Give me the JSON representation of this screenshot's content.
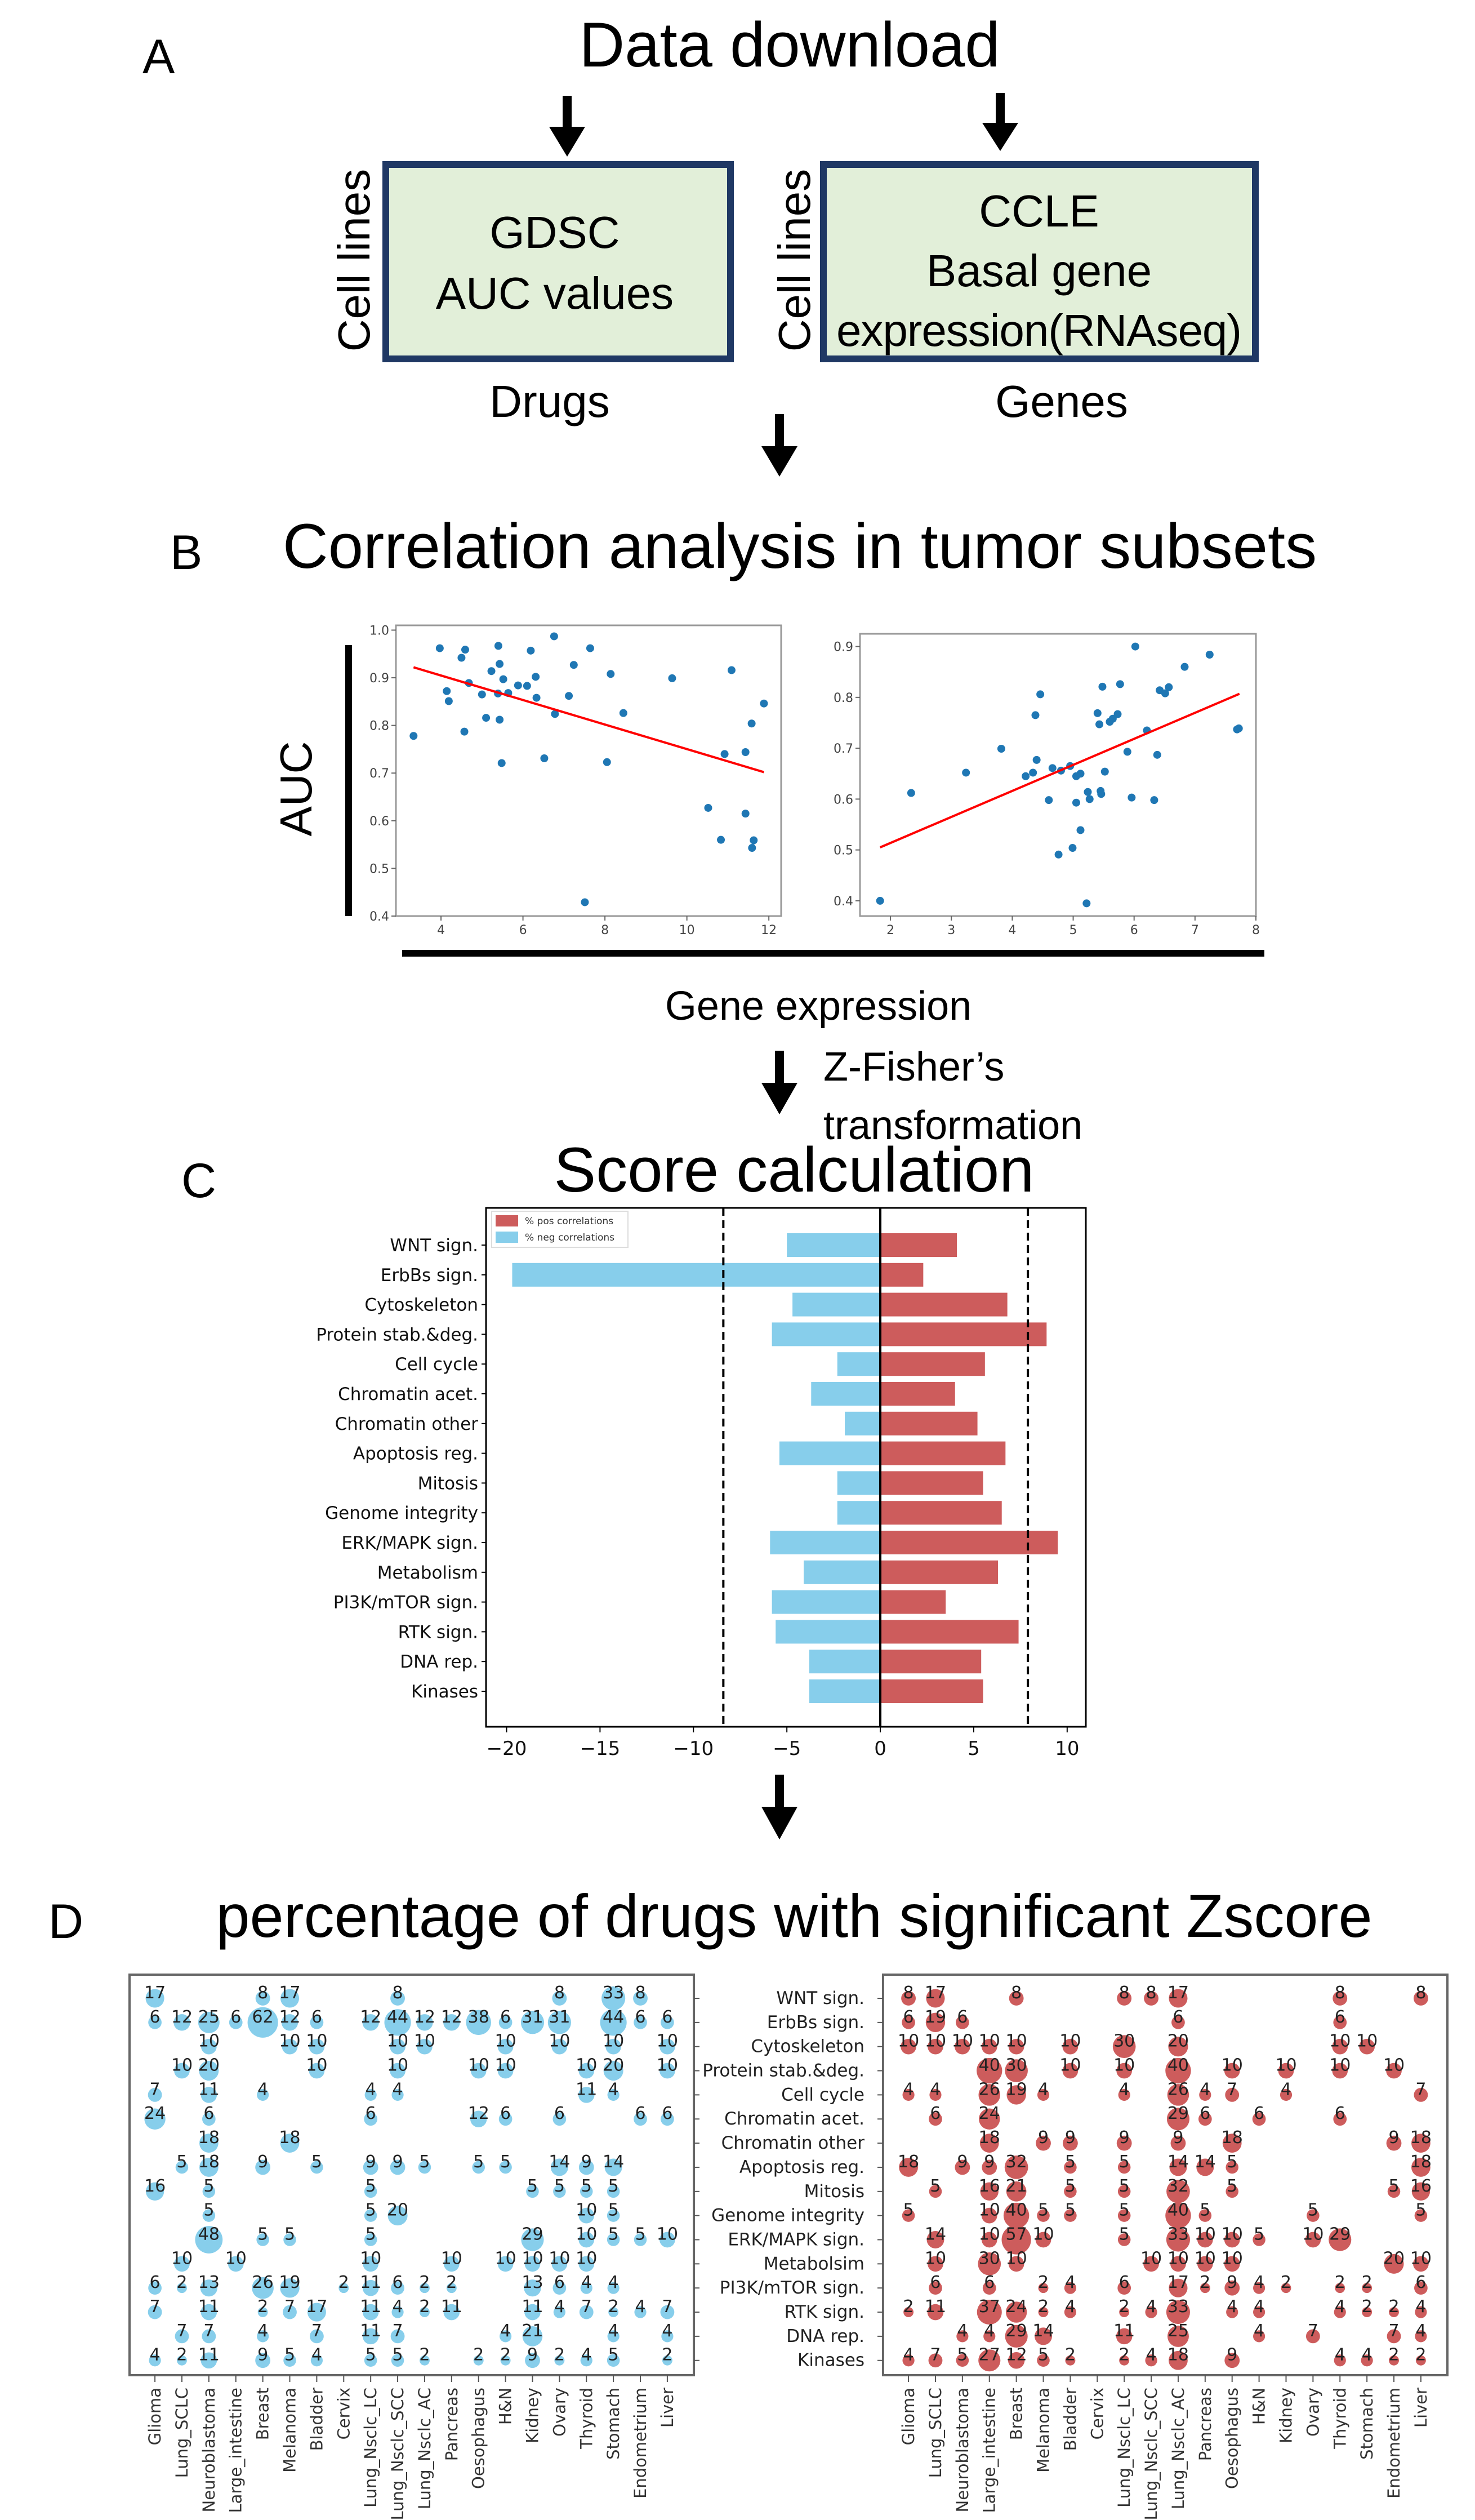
{
  "panelA": {
    "letter": "A",
    "title": "Data download",
    "gdsc": {
      "line1": "GDSC",
      "line2": "AUC values",
      "ylabel": "Cell lines",
      "xlabel": "Drugs"
    },
    "ccle": {
      "line1": "CCLE",
      "line2": "Basal gene",
      "line3": "expression(RNAseq)",
      "ylabel": "Cell lines",
      "xlabel": "Genes"
    }
  },
  "panelB": {
    "letter": "B",
    "title": "Correlation analysis in tumor subsets",
    "ylabel": "AUC",
    "xlabel": "Gene expression"
  },
  "transition": {
    "line1": "Z-Fisher’s",
    "line2": "transformation"
  },
  "panelC": {
    "letter": "C",
    "title": "Score calculation"
  },
  "panelD": {
    "letter": "D",
    "title": "percentage of drugs with significant Zscore"
  },
  "colors": {
    "box_border": "#1f3864",
    "box_fill": "#e2efd9",
    "point": "#1f77b4",
    "fit": "#ff0000",
    "pos": "#cd5c5c",
    "neg": "#87ceeb"
  },
  "chart_data": [
    {
      "type": "scatter",
      "title": "",
      "xlabel": "",
      "ylabel": "",
      "xlim": [
        2.9,
        12.3
      ],
      "ylim": [
        0.4,
        1.01
      ],
      "xticks": [
        "4",
        "6",
        "8",
        "10",
        "12"
      ],
      "xtick_values": [
        4,
        6,
        8,
        10,
        12
      ],
      "yticks": [
        "0.4",
        "0.5",
        "0.6",
        "0.7",
        "0.8",
        "0.9",
        "1.0"
      ],
      "ytick_values": [
        0.4,
        0.5,
        0.6,
        0.7,
        0.8,
        0.9,
        1.0
      ],
      "points": [
        [
          3.33,
          0.778
        ],
        [
          3.97,
          0.962
        ],
        [
          4.59,
          0.959
        ],
        [
          4.5,
          0.942
        ],
        [
          4.14,
          0.872
        ],
        [
          4.19,
          0.851
        ],
        [
          4.68,
          0.889
        ],
        [
          4.57,
          0.787
        ],
        [
          5.0,
          0.865
        ],
        [
          5.1,
          0.816
        ],
        [
          5.23,
          0.914
        ],
        [
          5.4,
          0.967
        ],
        [
          5.43,
          0.929
        ],
        [
          5.52,
          0.897
        ],
        [
          5.39,
          0.867
        ],
        [
          5.64,
          0.868
        ],
        [
          5.43,
          0.812
        ],
        [
          5.48,
          0.721
        ],
        [
          5.88,
          0.884
        ],
        [
          6.1,
          0.883
        ],
        [
          6.19,
          0.957
        ],
        [
          6.31,
          0.902
        ],
        [
          6.33,
          0.858
        ],
        [
          6.52,
          0.731
        ],
        [
          6.76,
          0.987
        ],
        [
          6.78,
          0.824
        ],
        [
          7.12,
          0.862
        ],
        [
          7.24,
          0.927
        ],
        [
          7.64,
          0.962
        ],
        [
          7.51,
          0.429
        ],
        [
          8.05,
          0.723
        ],
        [
          8.14,
          0.908
        ],
        [
          8.45,
          0.826
        ],
        [
          9.64,
          0.899
        ],
        [
          10.52,
          0.627
        ],
        [
          10.83,
          0.56
        ],
        [
          10.92,
          0.74
        ],
        [
          11.09,
          0.916
        ],
        [
          11.43,
          0.615
        ],
        [
          11.43,
          0.744
        ],
        [
          11.58,
          0.804
        ],
        [
          11.88,
          0.846
        ],
        [
          11.63,
          0.559
        ],
        [
          11.59,
          0.543
        ]
      ],
      "fit_line": [
        [
          3.33,
          0.922
        ],
        [
          11.88,
          0.702
        ]
      ]
    },
    {
      "type": "scatter",
      "title": "",
      "xlabel": "",
      "ylabel": "",
      "xlim": [
        1.5,
        8.0
      ],
      "ylim": [
        0.37,
        0.925
      ],
      "xticks": [
        "2",
        "3",
        "4",
        "5",
        "6",
        "7",
        "8"
      ],
      "xtick_values": [
        2,
        3,
        4,
        5,
        6,
        7,
        8
      ],
      "yticks": [
        "0.4",
        "0.5",
        "0.6",
        "0.7",
        "0.8",
        "0.9"
      ],
      "ytick_values": [
        0.4,
        0.5,
        0.6,
        0.7,
        0.8,
        0.9
      ],
      "points": [
        [
          1.83,
          0.4
        ],
        [
          2.34,
          0.612
        ],
        [
          3.24,
          0.652
        ],
        [
          3.82,
          0.699
        ],
        [
          4.22,
          0.645
        ],
        [
          4.34,
          0.652
        ],
        [
          4.4,
          0.677
        ],
        [
          4.38,
          0.765
        ],
        [
          4.46,
          0.806
        ],
        [
          4.6,
          0.598
        ],
        [
          4.66,
          0.661
        ],
        [
          4.76,
          0.491
        ],
        [
          4.8,
          0.656
        ],
        [
          4.95,
          0.665
        ],
        [
          4.99,
          0.504
        ],
        [
          5.05,
          0.645
        ],
        [
          5.05,
          0.593
        ],
        [
          5.12,
          0.65
        ],
        [
          5.12,
          0.539
        ],
        [
          5.22,
          0.395
        ],
        [
          5.24,
          0.614
        ],
        [
          5.27,
          0.6
        ],
        [
          5.4,
          0.769
        ],
        [
          5.43,
          0.747
        ],
        [
          5.45,
          0.616
        ],
        [
          5.46,
          0.61
        ],
        [
          5.48,
          0.821
        ],
        [
          5.52,
          0.654
        ],
        [
          5.6,
          0.752
        ],
        [
          5.65,
          0.758
        ],
        [
          5.73,
          0.767
        ],
        [
          5.77,
          0.826
        ],
        [
          5.89,
          0.693
        ],
        [
          5.96,
          0.603
        ],
        [
          6.02,
          0.9
        ],
        [
          6.21,
          0.735
        ],
        [
          6.33,
          0.598
        ],
        [
          6.38,
          0.687
        ],
        [
          6.42,
          0.814
        ],
        [
          6.51,
          0.808
        ],
        [
          6.57,
          0.82
        ],
        [
          6.83,
          0.86
        ],
        [
          7.24,
          0.884
        ],
        [
          7.69,
          0.737
        ],
        [
          7.72,
          0.739
        ]
      ],
      "fit_line": [
        [
          1.83,
          0.505
        ],
        [
          7.73,
          0.807
        ]
      ]
    },
    {
      "type": "bar",
      "orientation": "horizontal",
      "title": "",
      "categories": [
        "WNT sign.",
        "ErbBs sign.",
        "Cytoskeleton",
        "Protein stab.&deg.",
        "Cell cycle",
        "Chromatin acet.",
        "Chromatin other",
        "Apoptosis reg.",
        "Mitosis",
        "Genome integrity",
        "ERK/MAPK sign.",
        "Metabolism",
        "PI3K/mTOR sign.",
        "RTK sign.",
        "DNA rep.",
        "Kinases"
      ],
      "series": [
        {
          "name": "% pos correlations",
          "values": [
            4.1,
            2.3,
            6.8,
            8.9,
            5.6,
            4.0,
            5.2,
            6.7,
            5.5,
            6.5,
            9.5,
            6.3,
            3.5,
            7.4,
            5.4,
            5.5
          ]
        },
        {
          "name": "% neg correlations",
          "values": [
            -5.0,
            -19.7,
            -4.7,
            -5.8,
            -2.3,
            -3.7,
            -1.9,
            -5.4,
            -2.3,
            -2.3,
            -5.9,
            -4.1,
            -5.8,
            -5.6,
            -3.8,
            -3.8
          ]
        }
      ],
      "thresholds": [
        -8.4,
        7.9
      ],
      "xlim": [
        -21.1,
        11
      ],
      "xticks": [
        "−20",
        "−15",
        "−10",
        "−5",
        "0",
        "5",
        "10"
      ],
      "xtick_values": [
        -20,
        -15,
        -10,
        -5,
        0,
        5,
        10
      ],
      "legend": "top-left"
    },
    {
      "type": "bubble",
      "name": "negative correlations",
      "columns": [
        "Glioma",
        "Lung_SCLC",
        "Neuroblastoma",
        "Large_intestine",
        "Breast",
        "Melanoma",
        "Bladder",
        "Cervix",
        "Lung_Nsclc_LC",
        "Lung_Nsclc_SCC",
        "Lung_Nsclc_AC",
        "Pancreas",
        "Oesophagus",
        "H&N",
        "Kidney",
        "Ovary",
        "Thyroid",
        "Stomach",
        "Endometrium",
        "Liver"
      ],
      "rows": [
        "WNT sign.",
        "ErbBs sign.",
        "Cytoskeleton",
        "Protein stab.&deg.",
        "Cell cycle",
        "Chromatin acet.",
        "Chromatin other",
        "Apoptosis reg.",
        "Mitosis",
        "Genome integrity",
        "ERK/MAPK sign.",
        "Metabolsim",
        "PI3K/mTOR sign.",
        "RTK sign.",
        "DNA rep.",
        "Kinases"
      ],
      "values": [
        [
          17,
          0,
          0,
          0,
          8,
          17,
          0,
          0,
          0,
          8,
          0,
          0,
          0,
          0,
          0,
          8,
          0,
          33,
          8,
          0
        ],
        [
          6,
          12,
          25,
          6,
          62,
          12,
          6,
          0,
          12,
          44,
          12,
          12,
          38,
          6,
          31,
          31,
          0,
          44,
          6,
          6
        ],
        [
          0,
          0,
          10,
          0,
          0,
          10,
          10,
          0,
          0,
          10,
          10,
          0,
          0,
          10,
          0,
          10,
          0,
          10,
          0,
          10
        ],
        [
          0,
          10,
          20,
          0,
          0,
          0,
          10,
          0,
          0,
          10,
          0,
          0,
          10,
          10,
          0,
          0,
          10,
          20,
          0,
          10
        ],
        [
          7,
          0,
          11,
          0,
          4,
          0,
          0,
          0,
          4,
          4,
          0,
          0,
          0,
          0,
          0,
          0,
          11,
          4,
          0,
          0
        ],
        [
          24,
          0,
          6,
          0,
          0,
          0,
          0,
          0,
          6,
          0,
          0,
          0,
          12,
          6,
          0,
          6,
          0,
          0,
          6,
          6
        ],
        [
          0,
          0,
          18,
          0,
          0,
          18,
          0,
          0,
          0,
          0,
          0,
          0,
          0,
          0,
          0,
          0,
          0,
          0,
          0,
          0
        ],
        [
          0,
          5,
          18,
          0,
          9,
          0,
          5,
          0,
          9,
          9,
          5,
          0,
          5,
          5,
          0,
          14,
          9,
          14,
          0,
          0
        ],
        [
          16,
          0,
          5,
          0,
          0,
          0,
          0,
          0,
          5,
          0,
          0,
          0,
          0,
          0,
          5,
          5,
          5,
          5,
          0,
          0
        ],
        [
          0,
          0,
          5,
          0,
          0,
          0,
          0,
          0,
          5,
          20,
          0,
          0,
          0,
          0,
          0,
          0,
          10,
          5,
          0,
          0
        ],
        [
          0,
          0,
          48,
          0,
          5,
          5,
          0,
          0,
          5,
          0,
          0,
          0,
          0,
          0,
          29,
          0,
          10,
          5,
          5,
          10
        ],
        [
          0,
          10,
          0,
          10,
          0,
          0,
          0,
          0,
          10,
          0,
          0,
          10,
          0,
          10,
          10,
          10,
          10,
          0,
          0,
          0
        ],
        [
          6,
          2,
          13,
          0,
          26,
          19,
          0,
          2,
          11,
          6,
          2,
          2,
          0,
          0,
          13,
          6,
          4,
          4,
          0,
          0
        ],
        [
          7,
          0,
          11,
          0,
          2,
          7,
          17,
          0,
          11,
          4,
          2,
          11,
          0,
          0,
          11,
          4,
          7,
          2,
          4,
          7
        ],
        [
          0,
          7,
          7,
          0,
          4,
          0,
          7,
          0,
          11,
          7,
          0,
          0,
          0,
          4,
          21,
          0,
          0,
          4,
          0,
          4
        ],
        [
          4,
          2,
          11,
          0,
          9,
          5,
          4,
          0,
          5,
          5,
          2,
          0,
          2,
          2,
          9,
          2,
          4,
          5,
          0,
          2
        ]
      ]
    },
    {
      "type": "bubble",
      "name": "positive correlations",
      "columns": [
        "Glioma",
        "Lung_SCLC",
        "Neuroblastoma",
        "Large_intestine",
        "Breast",
        "Melanoma",
        "Bladder",
        "Cervix",
        "Lung_Nsclc_LC",
        "Lung_Nsclc_SCC",
        "Lung_Nsclc_AC",
        "Pancreas",
        "Oesophagus",
        "H&N",
        "Kidney",
        "Ovary",
        "Thyroid",
        "Stomach",
        "Endometrium",
        "Liver"
      ],
      "rows": [
        "WNT sign.",
        "ErbBs sign.",
        "Cytoskeleton",
        "Protein stab.&deg.",
        "Cell cycle",
        "Chromatin acet.",
        "Chromatin other",
        "Apoptosis reg.",
        "Mitosis",
        "Genome integrity",
        "ERK/MAPK sign.",
        "Metabolsim",
        "PI3K/mTOR sign.",
        "RTK sign.",
        "DNA rep.",
        "Kinases"
      ],
      "values": [
        [
          8,
          17,
          0,
          0,
          8,
          0,
          0,
          0,
          8,
          8,
          17,
          0,
          0,
          0,
          0,
          0,
          8,
          0,
          0,
          8
        ],
        [
          6,
          19,
          6,
          0,
          0,
          0,
          0,
          0,
          0,
          0,
          6,
          0,
          0,
          0,
          0,
          0,
          6,
          0,
          0,
          0
        ],
        [
          10,
          10,
          10,
          10,
          10,
          0,
          10,
          0,
          30,
          0,
          20,
          0,
          0,
          0,
          0,
          0,
          10,
          10,
          0,
          0
        ],
        [
          0,
          0,
          0,
          40,
          30,
          0,
          10,
          0,
          10,
          0,
          40,
          0,
          10,
          0,
          10,
          0,
          10,
          0,
          10,
          0
        ],
        [
          4,
          4,
          0,
          26,
          19,
          4,
          0,
          0,
          4,
          0,
          26,
          4,
          7,
          0,
          4,
          0,
          0,
          0,
          0,
          7
        ],
        [
          0,
          6,
          0,
          24,
          0,
          0,
          0,
          0,
          0,
          0,
          29,
          6,
          0,
          6,
          0,
          0,
          6,
          0,
          0,
          0
        ],
        [
          0,
          0,
          0,
          18,
          0,
          9,
          9,
          0,
          9,
          0,
          9,
          0,
          18,
          0,
          0,
          0,
          0,
          0,
          9,
          18
        ],
        [
          18,
          0,
          9,
          9,
          32,
          0,
          5,
          0,
          5,
          0,
          14,
          14,
          5,
          0,
          0,
          0,
          0,
          0,
          0,
          18
        ],
        [
          0,
          5,
          0,
          16,
          21,
          0,
          5,
          0,
          5,
          0,
          32,
          0,
          5,
          0,
          0,
          0,
          0,
          0,
          5,
          16
        ],
        [
          5,
          0,
          0,
          10,
          40,
          5,
          5,
          0,
          5,
          0,
          40,
          5,
          0,
          0,
          0,
          5,
          0,
          0,
          0,
          5
        ],
        [
          0,
          14,
          0,
          10,
          57,
          10,
          0,
          0,
          5,
          0,
          33,
          10,
          10,
          5,
          0,
          10,
          29,
          0,
          0,
          0
        ],
        [
          0,
          10,
          0,
          30,
          10,
          0,
          0,
          0,
          0,
          10,
          10,
          10,
          10,
          0,
          0,
          0,
          0,
          0,
          20,
          10
        ],
        [
          0,
          6,
          0,
          6,
          0,
          2,
          4,
          0,
          6,
          0,
          17,
          2,
          9,
          4,
          2,
          0,
          2,
          2,
          0,
          6
        ],
        [
          2,
          11,
          0,
          37,
          24,
          2,
          4,
          0,
          2,
          4,
          33,
          0,
          4,
          4,
          0,
          0,
          4,
          2,
          2,
          4
        ],
        [
          0,
          0,
          4,
          4,
          29,
          14,
          0,
          0,
          11,
          0,
          25,
          0,
          0,
          4,
          0,
          7,
          0,
          0,
          7,
          4
        ],
        [
          4,
          7,
          5,
          27,
          12,
          5,
          2,
          0,
          2,
          4,
          18,
          0,
          9,
          0,
          0,
          0,
          4,
          4,
          2,
          2
        ]
      ]
    }
  ]
}
